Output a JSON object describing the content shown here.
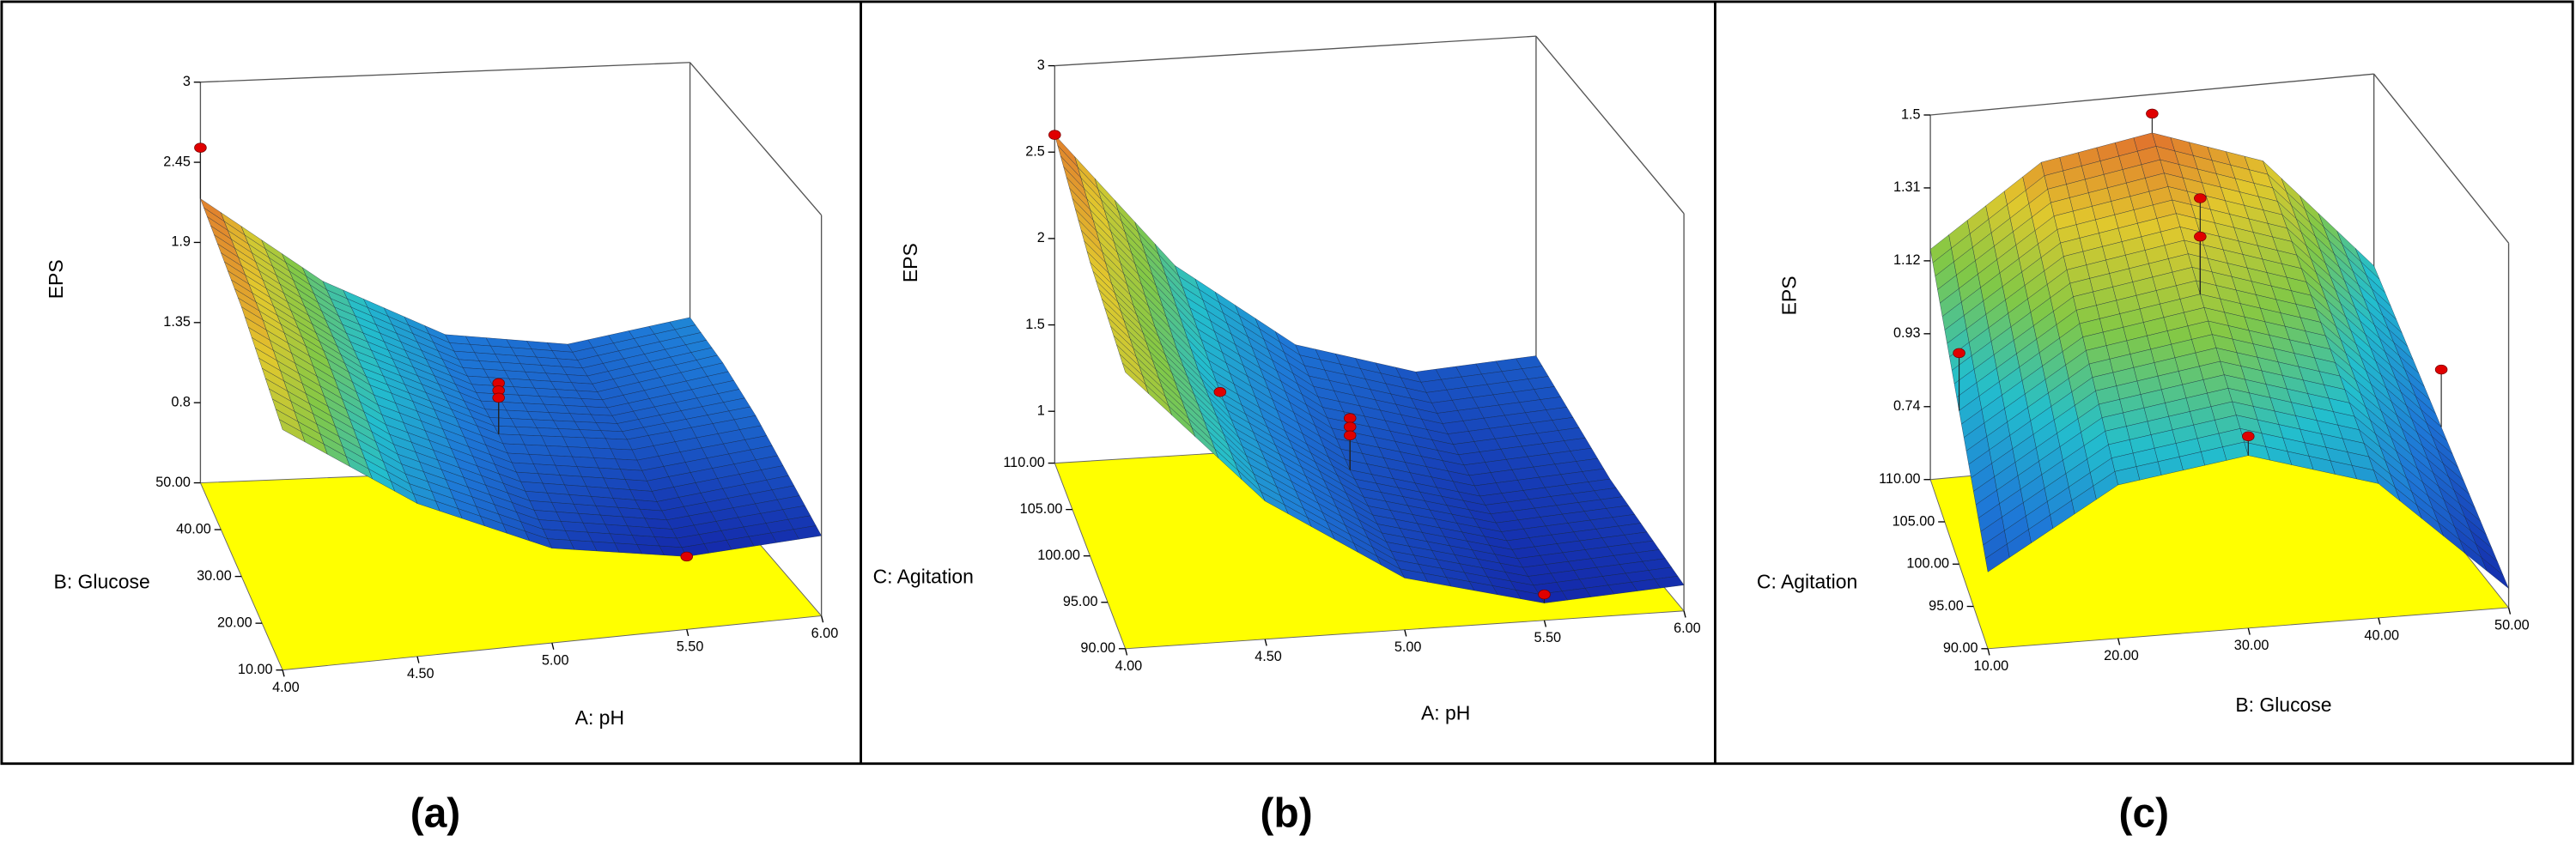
{
  "chart_data": [
    {
      "type": "surface3d",
      "panel_label": "(a)",
      "zlabel": "EPS",
      "xlabel": "A: pH",
      "ylabel": "B: Glucose",
      "xlim": [
        4,
        6
      ],
      "ylim": [
        10,
        50
      ],
      "zlim": [
        0.25,
        3
      ],
      "xticks": [
        {
          "value": 4,
          "label": "4.00"
        },
        {
          "value": 4.5,
          "label": "4.50"
        },
        {
          "value": 5,
          "label": "5.00"
        },
        {
          "value": 5.5,
          "label": "5.50"
        },
        {
          "value": 6,
          "label": "6.00"
        }
      ],
      "yticks": [
        {
          "value": 10,
          "label": "10.00"
        },
        {
          "value": 20,
          "label": "20.00"
        },
        {
          "value": 30,
          "label": "30.00"
        },
        {
          "value": 40,
          "label": "40.00"
        },
        {
          "value": 50,
          "label": "50.00"
        }
      ],
      "zticks": [
        0.8,
        1.35,
        1.9,
        2.45,
        3
      ],
      "surface": [
        [
          1.9,
          1.3,
          0.9,
          0.75,
          0.8
        ],
        [
          2.0,
          1.4,
          1.0,
          0.85,
          0.95
        ],
        [
          2.1,
          1.5,
          1.1,
          1.0,
          1.1
        ],
        [
          2.15,
          1.55,
          1.15,
          1.05,
          1.2
        ],
        [
          2.2,
          1.6,
          1.2,
          1.1,
          1.25
        ]
      ],
      "points": {
        "x": [
          4,
          5,
          5,
          5,
          5.5
        ],
        "y": [
          50,
          30,
          30,
          30,
          10
        ],
        "z": [
          2.55,
          1.45,
          1.4,
          1.35,
          0.75
        ]
      },
      "point_color": "#e00000",
      "floor_color": "#ffff00"
    },
    {
      "type": "surface3d",
      "panel_label": "(b)",
      "zlabel": "EPS",
      "xlabel": "A: pH",
      "ylabel": "C: Agitation",
      "xlim": [
        4,
        6
      ],
      "ylim": [
        90,
        110
      ],
      "zlim": [
        0.7,
        3
      ],
      "xticks": [
        {
          "value": 4,
          "label": "4.00"
        },
        {
          "value": 4.5,
          "label": "4.50"
        },
        {
          "value": 5,
          "label": "5.00"
        },
        {
          "value": 5.5,
          "label": "5.50"
        },
        {
          "value": 6,
          "label": "6.00"
        }
      ],
      "yticks": [
        {
          "value": 90,
          "label": "90.00"
        },
        {
          "value": 95,
          "label": "95.00"
        },
        {
          "value": 100,
          "label": "100.00"
        },
        {
          "value": 105,
          "label": "105.00"
        },
        {
          "value": 110,
          "label": "110.00"
        }
      ],
      "zticks": [
        1,
        1.5,
        2,
        2.5,
        3
      ],
      "surface": [
        [
          2.3,
          1.5,
          1.0,
          0.8,
          0.85
        ],
        [
          2.35,
          1.55,
          1.05,
          0.85,
          0.9
        ],
        [
          2.4,
          1.6,
          1.1,
          0.9,
          0.95
        ],
        [
          2.5,
          1.7,
          1.2,
          1.0,
          1.05
        ],
        [
          2.6,
          1.8,
          1.3,
          1.1,
          1.15
        ]
      ],
      "points": {
        "x": [
          4,
          4.5,
          5,
          5,
          5,
          5.5
        ],
        "y": [
          110,
          100,
          100,
          100,
          100,
          90
        ],
        "z": [
          2.6,
          1.6,
          1.4,
          1.35,
          1.3,
          0.85
        ]
      },
      "point_color": "#e00000",
      "floor_color": "#ffff00"
    },
    {
      "type": "surface3d",
      "panel_label": "(c)",
      "zlabel": "EPS",
      "xlabel": "B: Glucose",
      "ylabel": "C: Agitation",
      "xlim": [
        10,
        50
      ],
      "ylim": [
        90,
        110
      ],
      "zlim": [
        0.55,
        1.5
      ],
      "xticks": [
        {
          "value": 10,
          "label": "10.00"
        },
        {
          "value": 20,
          "label": "20.00"
        },
        {
          "value": 30,
          "label": "30.00"
        },
        {
          "value": 40,
          "label": "40.00"
        },
        {
          "value": 50,
          "label": "50.00"
        }
      ],
      "yticks": [
        {
          "value": 90,
          "label": "90.00"
        },
        {
          "value": 95,
          "label": "95.00"
        },
        {
          "value": 100,
          "label": "100.00"
        },
        {
          "value": 105,
          "label": "105.00"
        },
        {
          "value": 110,
          "label": "110.00"
        }
      ],
      "zticks": [
        0.74,
        0.93,
        1.12,
        1.31,
        1.5
      ],
      "surface": [
        [
          0.75,
          0.95,
          1.0,
          0.9,
          0.6
        ],
        [
          0.85,
          1.05,
          1.1,
          1.0,
          0.7
        ],
        [
          0.95,
          1.15,
          1.2,
          1.1,
          0.8
        ],
        [
          1.05,
          1.25,
          1.3,
          1.2,
          0.9
        ],
        [
          1.15,
          1.35,
          1.4,
          1.3,
          1.0
        ]
      ],
      "points": {
        "x": [
          10,
          30,
          30,
          30,
          30,
          50
        ],
        "y": [
          100,
          110,
          100,
          100,
          90,
          100
        ],
        "z": [
          1.1,
          1.45,
          1.45,
          1.35,
          1.05,
          0.95
        ]
      },
      "point_color": "#e00000",
      "floor_color": "#ffff00"
    }
  ]
}
